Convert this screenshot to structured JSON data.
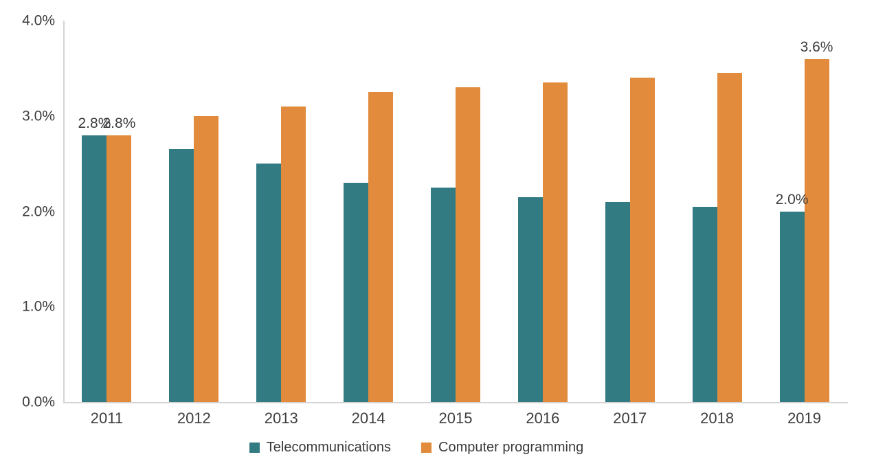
{
  "chart_data": {
    "type": "bar",
    "title": "",
    "xlabel": "",
    "ylabel": "",
    "categories": [
      "2011",
      "2012",
      "2013",
      "2014",
      "2015",
      "2016",
      "2017",
      "2018",
      "2019"
    ],
    "series": [
      {
        "name": "Telecommunications",
        "color": "#337b83",
        "values": [
          2.8,
          2.65,
          2.5,
          2.3,
          2.25,
          2.15,
          2.1,
          2.05,
          2.0
        ]
      },
      {
        "name": "Computer programming",
        "color": "#e28b3c",
        "values": [
          2.8,
          3.0,
          3.1,
          3.25,
          3.3,
          3.35,
          3.4,
          3.45,
          3.6
        ]
      }
    ],
    "y_ticks": [
      "0.0%",
      "1.0%",
      "2.0%",
      "3.0%",
      "4.0%"
    ],
    "ylim": [
      0,
      4
    ],
    "grid": false,
    "legend_position": "bottom",
    "annotations": [
      {
        "series": 0,
        "index": 0,
        "text": "2.8%"
      },
      {
        "series": 1,
        "index": 0,
        "text": "2.8%"
      },
      {
        "series": 0,
        "index": 8,
        "text": "2.0%"
      },
      {
        "series": 1,
        "index": 8,
        "text": "3.6%"
      }
    ]
  },
  "colors": {
    "axis_line": "#d4d4d4",
    "tick_text": "#3d3d3d"
  }
}
